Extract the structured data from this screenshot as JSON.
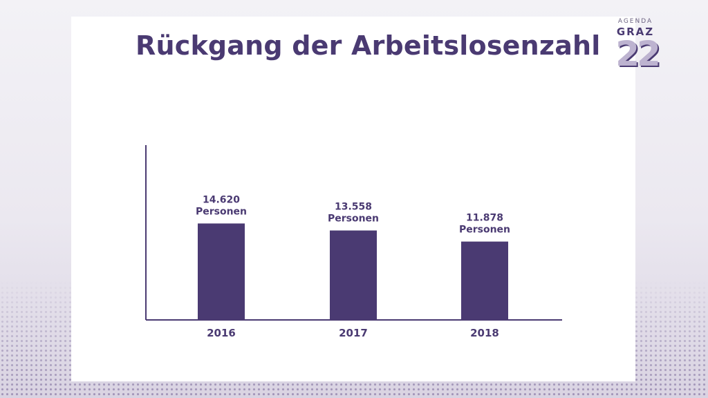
{
  "title": "Rückgang der Arbeitslosenzahl",
  "logo": {
    "top": "AGENDA",
    "middle": "GRAZ",
    "number": "22"
  },
  "colors": {
    "bar": "#4a3a72",
    "axis": "#4a3a72",
    "text": "#4a3a72"
  },
  "chart_data": {
    "type": "bar",
    "title": "Rückgang der Arbeitslosenzahl",
    "xlabel": "",
    "ylabel": "",
    "categories": [
      "2016",
      "2017",
      "2018"
    ],
    "values": [
      14620,
      13558,
      11878
    ],
    "value_labels": [
      [
        "14.620",
        "Personen"
      ],
      [
        "13.558",
        "Personen"
      ],
      [
        "11.878",
        "Personen"
      ]
    ],
    "ylim": [
      0,
      26500
    ],
    "grid": false,
    "legend": "none"
  }
}
